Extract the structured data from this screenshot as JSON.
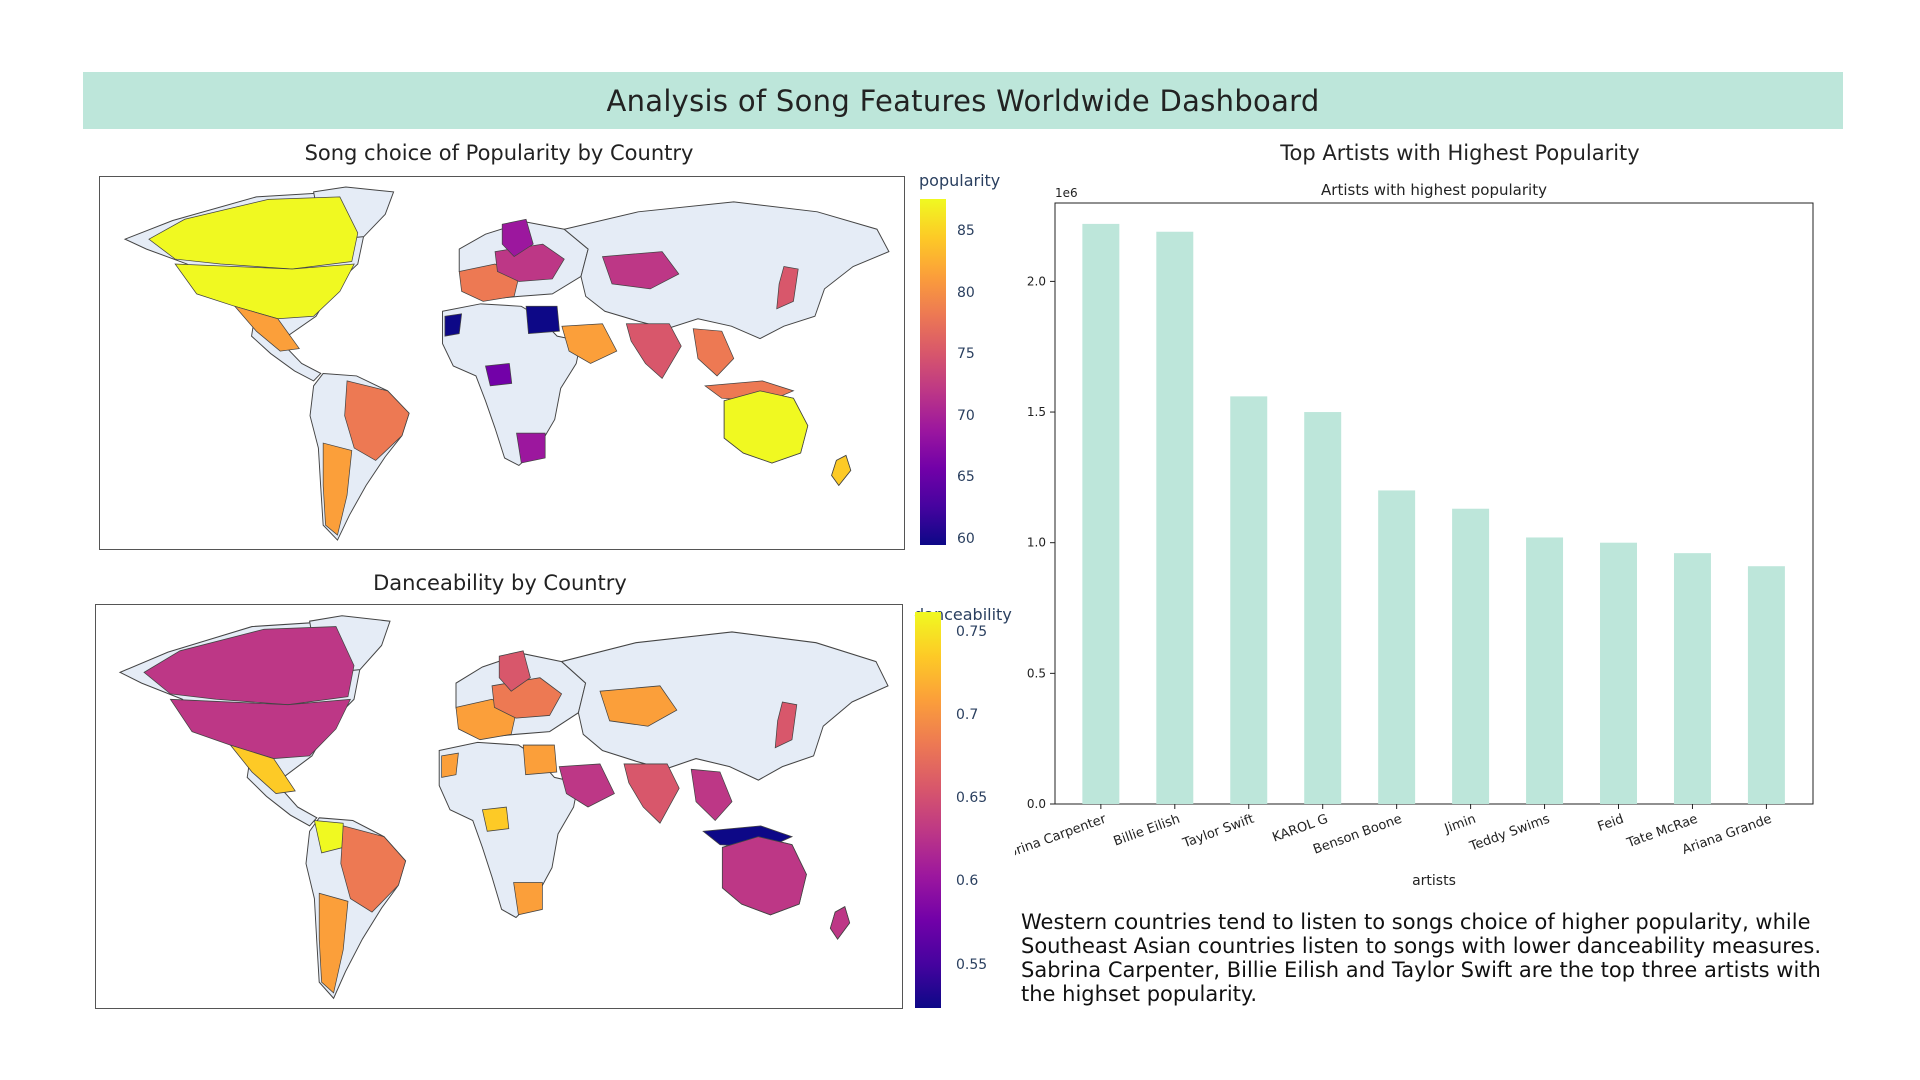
{
  "title": "Analysis of Song Features Worldwide Dashboard",
  "map_popularity": {
    "title": "Song choice of Popularity by Country",
    "colorbar_title": "popularity",
    "ticks": [
      "85",
      "80",
      "75",
      "70",
      "65",
      "60"
    ]
  },
  "map_danceability": {
    "title": "Danceability by Country",
    "colorbar_title": "danceability",
    "ticks": [
      "0.75",
      "0.7",
      "0.65",
      "0.6",
      "0.55"
    ]
  },
  "colors": {
    "land": "#e5ecf6",
    "bar": "#bde6da",
    "banner": "#bde6da",
    "plasma": [
      "#0d0887",
      "#46039f",
      "#7201a8",
      "#9c179e",
      "#bd3786",
      "#d8576b",
      "#ed7953",
      "#fb9f3a",
      "#fdca26",
      "#f0f921"
    ]
  },
  "chart_section_title": "Top Artists with Highest Popularity",
  "chart_data": {
    "type": "bar",
    "title": "Artists with highest popularity",
    "xlabel": "artists",
    "ylabel": "",
    "offset_label": "1e6",
    "categories": [
      "Sabrina Carpenter",
      "Billie Eilish",
      "Taylor Swift",
      "KAROL G",
      "Benson Boone",
      "Jimin",
      "Teddy Swims",
      "Feid",
      "Tate McRae",
      "Ariana Grande"
    ],
    "values": [
      2.22,
      2.19,
      1.56,
      1.5,
      1.2,
      1.13,
      1.02,
      1.0,
      0.96,
      0.91
    ],
    "yticks": [
      "0.0",
      "0.5",
      "1.0",
      "1.5",
      "2.0"
    ],
    "ylim": [
      0,
      2.3
    ],
    "grid": false
  },
  "summary": "Western countries tend to listen to songs choice of higher popularity, while Southeast Asian countries listen to songs with lower danceability measures. Sabrina Carpenter, Billie Eilish and Taylor Swift are the top three artists with the highset popularity."
}
